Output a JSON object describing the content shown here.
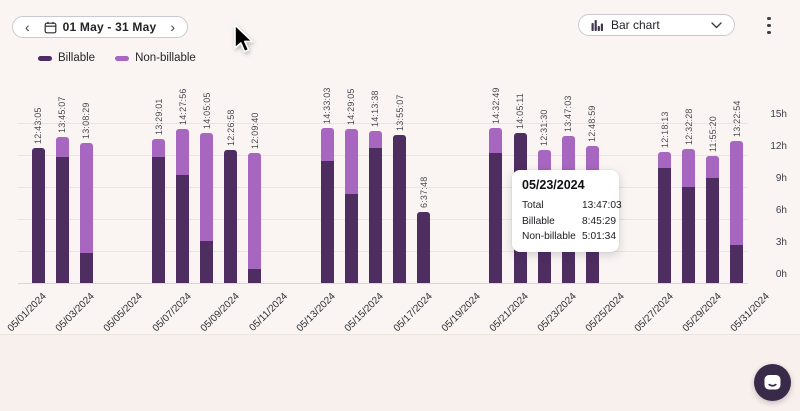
{
  "header": {
    "date_range": {
      "prev_glyph": "‹",
      "next_glyph": "›",
      "label": "01 May - 31 May"
    },
    "chart_type": {
      "label": "Bar chart"
    }
  },
  "legend": {
    "billable": "Billable",
    "nonbillable": "Non-billable"
  },
  "tooltip": {
    "date": "05/23/2024",
    "rows": [
      {
        "label": "Total",
        "value": "13:47:03"
      },
      {
        "label": "Billable",
        "value": "8:45:29"
      },
      {
        "label": "Non-billable",
        "value": "5:01:34"
      }
    ]
  },
  "icons": [
    "calendar-icon",
    "chevron-left-icon",
    "chevron-right-icon",
    "bar-chart-icon",
    "chevron-down-icon",
    "kebab-menu-icon",
    "chat-icon",
    "cursor-arrow"
  ],
  "colors": {
    "billable": "#4e2d60",
    "nonbillable": "#a766c0",
    "chat_button": "#3a2a49",
    "background": "#faf5f3",
    "footer": "#f8f0ec",
    "grid": "#eae4e1"
  },
  "chart_data": {
    "type": "bar",
    "stacked": true,
    "title": "",
    "xlabel": "",
    "ylabel": "",
    "ylim": [
      0,
      15
    ],
    "y_ticks": [
      "0h",
      "3h",
      "6h",
      "9h",
      "12h",
      "15h"
    ],
    "grid": true,
    "legend_position": "top-left",
    "x_tick_labels": [
      "05/01/2024",
      "05/03/2024",
      "05/05/2024",
      "05/07/2024",
      "05/09/2024",
      "05/11/2024",
      "05/13/2024",
      "05/15/2024",
      "05/17/2024",
      "05/19/2024",
      "05/21/2024",
      "05/23/2024",
      "05/25/2024",
      "05/27/2024",
      "05/29/2024",
      "05/31/2024"
    ],
    "series_names": [
      "Billable",
      "Non-billable"
    ],
    "bars": [
      {
        "day": 1,
        "date": "05/01/2024",
        "total": "12:43:05",
        "billable_h": 12.72,
        "nonbillable_h": 0
      },
      {
        "day": 2,
        "date": "05/02/2024",
        "total": "13:45:07",
        "billable_h": 11.8,
        "nonbillable_h": 1.95
      },
      {
        "day": 3,
        "date": "05/03/2024",
        "total": "13:08:29",
        "billable_h": 2.85,
        "nonbillable_h": 10.29
      },
      {
        "day": 6,
        "date": "05/06/2024",
        "total": "13:29:01",
        "billable_h": 11.8,
        "nonbillable_h": 1.68
      },
      {
        "day": 7,
        "date": "05/07/2024",
        "total": "14:27:56",
        "billable_h": 10.14,
        "nonbillable_h": 4.33
      },
      {
        "day": 8,
        "date": "05/08/2024",
        "total": "14:05:05",
        "billable_h": 3.94,
        "nonbillable_h": 10.15
      },
      {
        "day": 9,
        "date": "05/09/2024",
        "total": "12:26:58",
        "billable_h": 12.45,
        "nonbillable_h": 0
      },
      {
        "day": 10,
        "date": "05/10/2024",
        "total": "12:09:40",
        "billable_h": 1.31,
        "nonbillable_h": 10.85
      },
      {
        "day": 13,
        "date": "05/13/2024",
        "total": "14:33:03",
        "billable_h": 11.48,
        "nonbillable_h": 3.07
      },
      {
        "day": 14,
        "date": "05/14/2024",
        "total": "14:29:05",
        "billable_h": 8.33,
        "nonbillable_h": 6.16
      },
      {
        "day": 15,
        "date": "05/15/2024",
        "total": "14:13:38",
        "billable_h": 12.7,
        "nonbillable_h": 1.53
      },
      {
        "day": 16,
        "date": "05/16/2024",
        "total": "13:55:07",
        "billable_h": 13.92,
        "nonbillable_h": 0
      },
      {
        "day": 17,
        "date": "05/17/2024",
        "total": "6:37:48",
        "billable_h": 6.63,
        "nonbillable_h": 0
      },
      {
        "day": 20,
        "date": "05/20/2024",
        "total": "14:32:49",
        "billable_h": 12.18,
        "nonbillable_h": 2.37
      },
      {
        "day": 21,
        "date": "05/21/2024",
        "total": "14:05:11",
        "billable_h": 14.09,
        "nonbillable_h": 0
      },
      {
        "day": 22,
        "date": "05/22/2024",
        "total": "12:31:30",
        "billable_h": 6.98,
        "nonbillable_h": 5.55
      },
      {
        "day": 23,
        "date": "05/23/2024",
        "total": "13:47:03",
        "billable_h": 8.76,
        "nonbillable_h": 5.03
      },
      {
        "day": 24,
        "date": "05/24/2024",
        "total": "12:48:59",
        "billable_h": 8.02,
        "nonbillable_h": 4.8
      },
      {
        "day": 27,
        "date": "05/27/2024",
        "total": "12:18:13",
        "billable_h": 10.77,
        "nonbillable_h": 1.53
      },
      {
        "day": 28,
        "date": "05/28/2024",
        "total": "12:32:28",
        "billable_h": 9.04,
        "nonbillable_h": 3.5
      },
      {
        "day": 29,
        "date": "05/29/2024",
        "total": "11:55:20",
        "billable_h": 9.83,
        "nonbillable_h": 2.09
      },
      {
        "day": 30,
        "date": "05/30/2024",
        "total": "13:22:54",
        "billable_h": 3.57,
        "nonbillable_h": 9.81
      }
    ]
  }
}
